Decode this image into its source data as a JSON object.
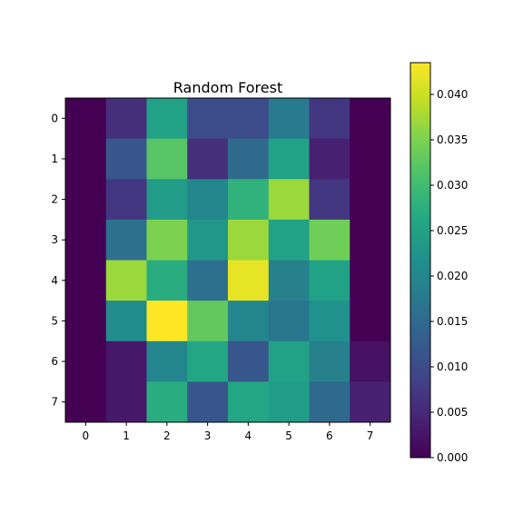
{
  "chart_data": {
    "type": "heatmap",
    "title": "Random Forest",
    "x_ticks": [
      "0",
      "1",
      "2",
      "3",
      "4",
      "5",
      "6",
      "7"
    ],
    "y_ticks": [
      "0",
      "1",
      "2",
      "3",
      "4",
      "5",
      "6",
      "7"
    ],
    "values": [
      [
        0.0,
        0.006,
        0.025,
        0.01,
        0.01,
        0.018,
        0.007,
        0.0
      ],
      [
        0.0,
        0.012,
        0.032,
        0.006,
        0.015,
        0.025,
        0.004,
        0.0
      ],
      [
        0.0,
        0.007,
        0.024,
        0.02,
        0.028,
        0.037,
        0.007,
        0.0
      ],
      [
        0.0,
        0.016,
        0.035,
        0.023,
        0.037,
        0.025,
        0.034,
        0.0
      ],
      [
        0.0,
        0.037,
        0.027,
        0.016,
        0.042,
        0.019,
        0.025,
        0.0
      ],
      [
        0.0,
        0.021,
        0.0435,
        0.033,
        0.02,
        0.017,
        0.022,
        0.0
      ],
      [
        0.0,
        0.003,
        0.02,
        0.026,
        0.012,
        0.025,
        0.019,
        0.002
      ],
      [
        0.0,
        0.003,
        0.027,
        0.012,
        0.026,
        0.024,
        0.015,
        0.004
      ]
    ],
    "colormap": "viridis",
    "vmin": 0.0,
    "vmax": 0.0435,
    "colorbar_ticks": [
      "0.000",
      "0.005",
      "0.010",
      "0.015",
      "0.020",
      "0.025",
      "0.030",
      "0.035",
      "0.040"
    ],
    "colorbar_tick_values": [
      0.0,
      0.005,
      0.01,
      0.015,
      0.02,
      0.025,
      0.03,
      0.035,
      0.04
    ],
    "grid": false,
    "legend": "colorbar-right"
  }
}
